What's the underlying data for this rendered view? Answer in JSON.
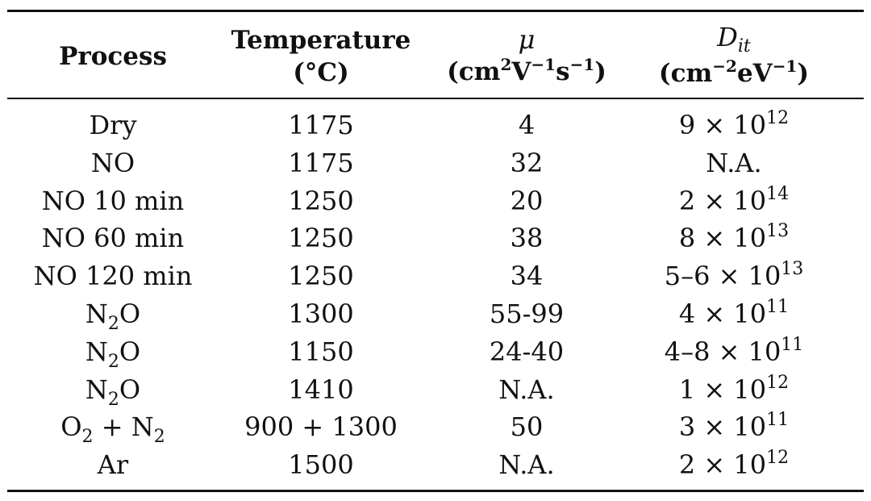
{
  "header": {
    "process": "Process",
    "temperature_line1": "Temperature",
    "temperature_line2": "(°C)",
    "mu_symbol": "μ",
    "mu_unit_cm": "(cm",
    "mu_unit_cm_exp": "2",
    "mu_unit_v": "V",
    "mu_unit_v_exp": "−1",
    "mu_unit_s": "s",
    "mu_unit_s_exp": "−1",
    "mu_unit_close": ")",
    "dit_symbol": "D",
    "dit_subscript": "it",
    "dit_unit_cm": "(cm",
    "dit_unit_cm_exp": "−2",
    "dit_unit_ev": "eV",
    "dit_unit_ev_exp": "−1",
    "dit_unit_close": ")"
  },
  "rows": [
    {
      "process": "Dry",
      "process_sub": "",
      "process_tail": "",
      "process_sub2": "",
      "temperature": "1175",
      "mu": "4",
      "dit_base": "9 × 10",
      "dit_exp": "12"
    },
    {
      "process": "NO",
      "process_sub": "",
      "process_tail": "",
      "process_sub2": "",
      "temperature": "1175",
      "mu": "32",
      "dit_base": "N.A.",
      "dit_exp": ""
    },
    {
      "process": "NO 10 min",
      "process_sub": "",
      "process_tail": "",
      "process_sub2": "",
      "temperature": "1250",
      "mu": "20",
      "dit_base": "2 × 10",
      "dit_exp": "14"
    },
    {
      "process": "NO 60 min",
      "process_sub": "",
      "process_tail": "",
      "process_sub2": "",
      "temperature": "1250",
      "mu": "38",
      "dit_base": "8 × 10",
      "dit_exp": "13"
    },
    {
      "process": "NO 120 min",
      "process_sub": "",
      "process_tail": "",
      "process_sub2": "",
      "temperature": "1250",
      "mu": "34",
      "dit_base": "5–6 × 10",
      "dit_exp": "13"
    },
    {
      "process": "N",
      "process_sub": "2",
      "process_tail": "O",
      "process_sub2": "",
      "temperature": "1300",
      "mu": "55-99",
      "dit_base": "4 × 10",
      "dit_exp": "11"
    },
    {
      "process": "N",
      "process_sub": "2",
      "process_tail": "O",
      "process_sub2": "",
      "temperature": "1150",
      "mu": "24-40",
      "dit_base": "4–8 × 10",
      "dit_exp": "11"
    },
    {
      "process": "N",
      "process_sub": "2",
      "process_tail": "O",
      "process_sub2": "",
      "temperature": "1410",
      "mu": "N.A.",
      "dit_base": "1 × 10",
      "dit_exp": "12"
    },
    {
      "process": "O",
      "process_sub": "2",
      "process_tail": " + N",
      "process_sub2": "2",
      "temperature": "900 + 1300",
      "mu": "50",
      "dit_base": "3 × 10",
      "dit_exp": "11"
    },
    {
      "process": "Ar",
      "process_sub": "",
      "process_tail": "",
      "process_sub2": "",
      "temperature": "1500",
      "mu": "N.A.",
      "dit_base": "2 × 10",
      "dit_exp": "12"
    }
  ]
}
